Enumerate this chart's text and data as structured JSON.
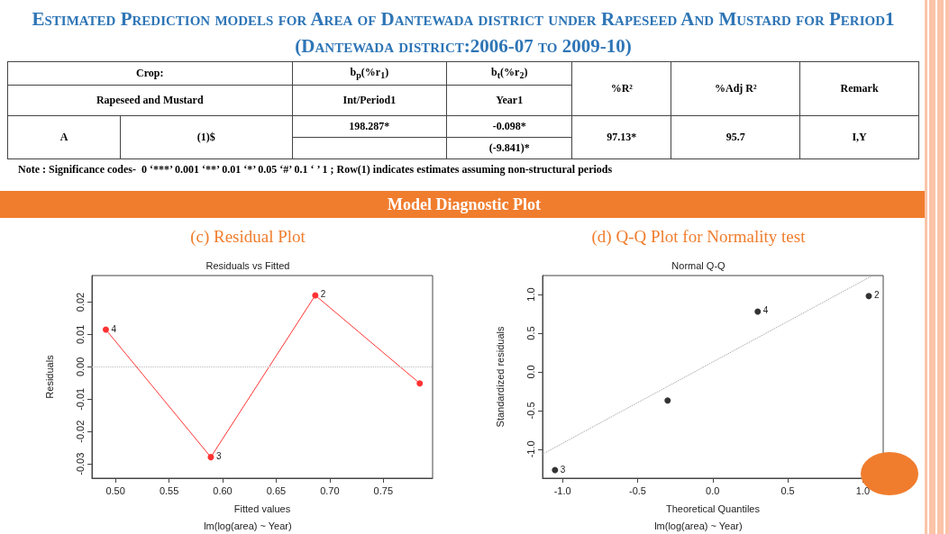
{
  "chart_data": [
    {
      "type": "other",
      "title": "Estimated Prediction models for Area of Dantewada district under Rapeseed And Mustard for Period1  (Dantewada district:2006-07 to 2009-10)",
      "subtitle": "Model Diagnostic Plot",
      "annotations": [
        "Crop:",
        "Rapeseed and Mustard",
        "b$_{p}$(%r$_{1}$)",
        "Int/Period1",
        "b$_{t}$(%r$_{2}$)",
        "Year1",
        "%R²",
        "%Adj R²",
        "Remark",
        "A",
        "(1)$",
        "198.287*",
        "-0.098*",
        "(-9.841)*",
        "97.13*",
        "95.7",
        "I,Y",
        "Note : Significance codes-  0 ‘***’ 0.001 ‘**’ 0.01 ‘*’ 0.05 ‘#’ 0.1 ‘ ’ 1 ; Row(1) indicates estimates assuming non-structural periods"
      ]
    },
    {
      "type": "line",
      "title": "(c) Residual Plot",
      "subtitle": "Residuals vs Fitted",
      "xlabel": "Fitted values",
      "ylabel": "Residuals",
      "x": [
        0.491,
        0.589,
        0.6865,
        0.784
      ],
      "series": [
        {
          "color": "#ff3333",
          "values": [
            0.0115,
            -0.0279,
            0.0221,
            -0.0051
          ]
        }
      ],
      "marker": "circle",
      "grid": false,
      "xlim": [
        0.478,
        0.796
      ],
      "xticks": [
        {
          "value": 0.5,
          "label": "0.50"
        },
        {
          "value": 0.55,
          "label": "0.55"
        },
        {
          "value": 0.6,
          "label": "0.60"
        },
        {
          "value": 0.65,
          "label": "0.65"
        },
        {
          "value": 0.7,
          "label": "0.70"
        },
        {
          "value": 0.75,
          "label": "0.75"
        }
      ],
      "ylim": [
        -0.0344,
        0.0282
      ],
      "yticks": [
        -0.03,
        -0.02,
        -0.01,
        {
          "value": 0,
          "label": "0.00"
        },
        0.01,
        0.02
      ],
      "ref_lines": [
        {
          "axis": "y",
          "value": 0,
          "color": "#bbbbbb",
          "line_style": "dotted"
        }
      ],
      "annotations": [
        {
          "text": "4",
          "x": 0.491,
          "y": 0.0115
        },
        {
          "text": "3",
          "x": 0.589,
          "y": -0.0279
        },
        {
          "text": "2",
          "x": 0.6865,
          "y": 0.0221
        },
        "lm(log(area) ~ Year)"
      ]
    },
    {
      "type": "scatter",
      "title": "(d) Q-Q Plot for Normality test",
      "subtitle": "Normal Q-Q",
      "xlabel": "Theoretical Quantiles",
      "ylabel": "Standardized residuals",
      "x": [
        -1.05,
        -0.3,
        0.3,
        1.04
      ],
      "series": [
        {
          "color": "#000000",
          "values": [
            -1.27,
            -0.37,
            0.78,
            0.98
          ]
        },
        {
          "type": "line",
          "x": [
            -1.13,
            1.06
          ],
          "values": [
            -1.06,
            1.24
          ],
          "color": "#999999",
          "line_style": "dotted",
          "marker": "none"
        }
      ],
      "marker": "circle",
      "grid": false,
      "xlim": [
        -1.133,
        1.136
      ],
      "xticks": [
        {
          "value": -1,
          "label": "-1.0"
        },
        -0.5,
        {
          "value": 0,
          "label": "0.0"
        },
        0.5,
        {
          "value": 1,
          "label": "1.0"
        }
      ],
      "ylim": [
        -1.374,
        1.245
      ],
      "yticks": [
        {
          "value": -1,
          "label": "-1.0"
        },
        -0.5,
        {
          "value": 0,
          "label": "0.0"
        },
        0.5,
        {
          "value": 1,
          "label": "1.0"
        }
      ],
      "annotations": [
        {
          "text": "3",
          "x": -1.05,
          "y": -1.27
        },
        {
          "text": "4",
          "x": 0.3,
          "y": 0.78
        },
        {
          "text": "2",
          "x": 1.04,
          "y": 0.98
        },
        "lm(log(area) ~ Year)"
      ]
    }
  ]
}
